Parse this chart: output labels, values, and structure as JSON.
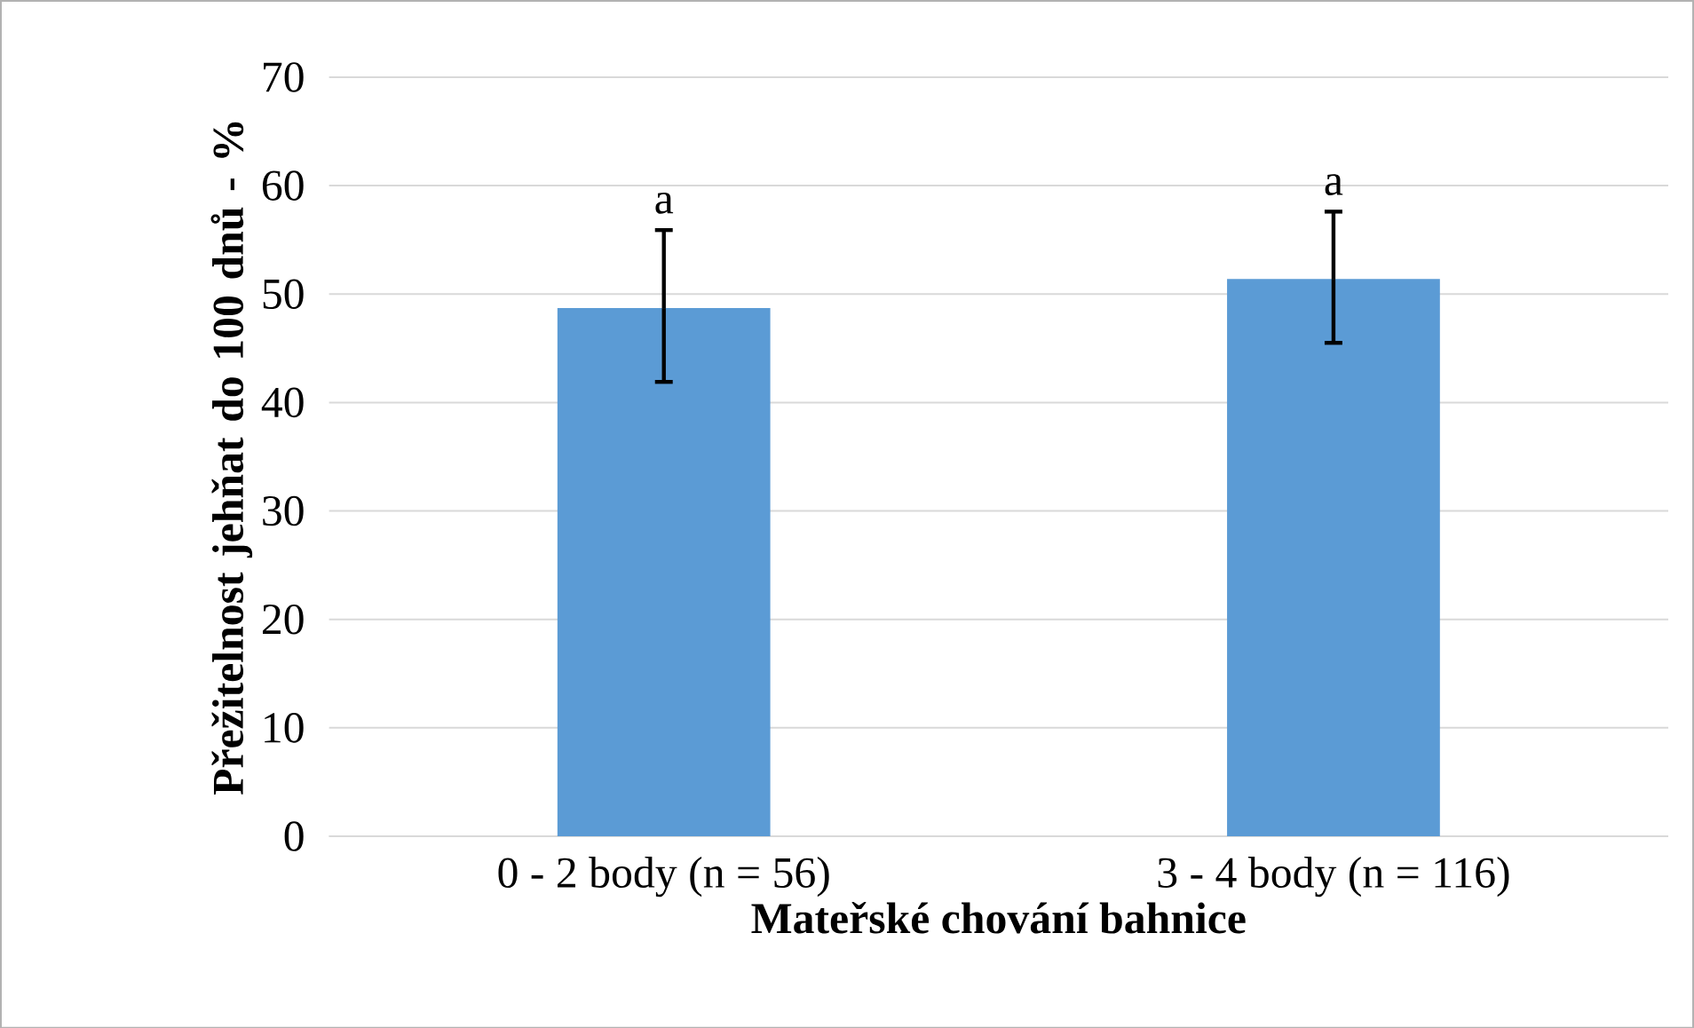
{
  "chart_data": {
    "type": "bar",
    "xlabel": "Mateřské chování bahnice",
    "ylabel": "Přežitelnost jehňat do 100 dnů - %",
    "categories": [
      "0 - 2 body (n = 56)",
      "3 - 4 body (n = 116)"
    ],
    "values": [
      48.7,
      51.4
    ],
    "color": "#5b9bd5",
    "errors": [
      [
        41.9,
        55.9
      ],
      [
        45.5,
        57.6
      ]
    ],
    "annotations": [
      "a",
      "a"
    ],
    "ylim": [
      0,
      70
    ],
    "yticks": [
      0,
      10,
      20,
      30,
      40,
      50,
      60,
      70
    ],
    "grid": "y"
  }
}
